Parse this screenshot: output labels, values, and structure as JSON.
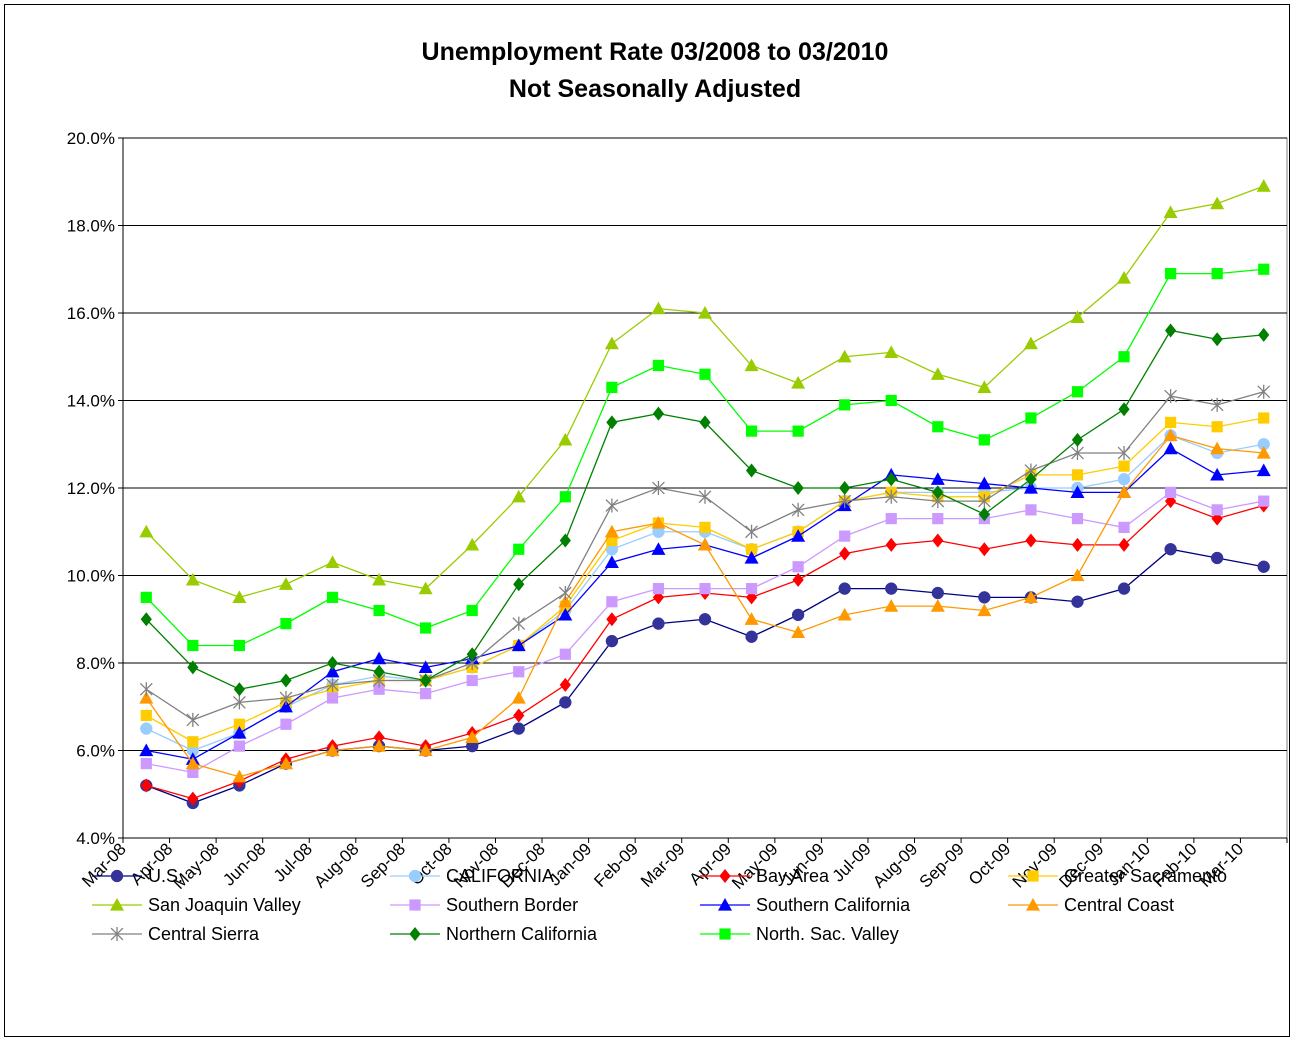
{
  "chart_data": {
    "type": "line",
    "title": [
      "Unemployment Rate 03/2008 to 03/2010",
      "Not Seasonally Adjusted"
    ],
    "xlabel": "",
    "ylabel": "",
    "ylim": [
      4.0,
      20.0
    ],
    "yticks": [
      "4.0%",
      "6.0%",
      "8.0%",
      "10.0%",
      "12.0%",
      "14.0%",
      "16.0%",
      "18.0%",
      "20.0%"
    ],
    "xticks": [
      "Mar-08",
      "Apr-08",
      "May-08",
      "Jun-08",
      "Jul-08",
      "Aug-08",
      "Sep-08",
      "Oct-08",
      "Nov-08",
      "Dec-08",
      "Jan-09",
      "Feb-09",
      "Mar-09",
      "Apr-09",
      "May-09",
      "Jun-09",
      "Jul-09",
      "Aug-09",
      "Sep-09",
      "Oct-09",
      "Nov-09",
      "Dec-09",
      "Jan-10",
      "Feb-10",
      "Mar-10"
    ],
    "grid": "horizontal",
    "legend": "bottom",
    "series": [
      {
        "name": "U.S.",
        "color": "#333399",
        "line": "#000080",
        "marker": "circle",
        "values": [
          5.2,
          4.8,
          5.2,
          5.7,
          6.0,
          6.1,
          6.0,
          6.1,
          6.5,
          7.1,
          8.5,
          8.9,
          9.0,
          8.6,
          9.1,
          9.7,
          9.7,
          9.6,
          9.5,
          9.5,
          9.4,
          9.7,
          10.6,
          10.4,
          10.2
        ]
      },
      {
        "name": "CALIFORNIA",
        "color": "#99CCFF",
        "line": "#99CCFF",
        "marker": "circle",
        "values": [
          6.5,
          6.0,
          6.4,
          7.0,
          7.5,
          7.7,
          7.6,
          7.9,
          8.4,
          9.2,
          10.6,
          11.0,
          11.0,
          10.6,
          11.0,
          11.7,
          11.9,
          11.9,
          11.9,
          12.0,
          12.0,
          12.2,
          13.2,
          12.8,
          13.0
        ]
      },
      {
        "name": "Bay Area",
        "color": "#FF0000",
        "line": "#FF0000",
        "marker": "diamond",
        "values": [
          5.2,
          4.9,
          5.3,
          5.8,
          6.1,
          6.3,
          6.1,
          6.4,
          6.8,
          7.5,
          9.0,
          9.5,
          9.6,
          9.5,
          9.9,
          10.5,
          10.7,
          10.8,
          10.6,
          10.8,
          10.7,
          10.7,
          11.7,
          11.3,
          11.6
        ]
      },
      {
        "name": "Greater Sacramento",
        "color": "#FFCC00",
        "line": "#FFCC00",
        "marker": "square",
        "values": [
          6.8,
          6.2,
          6.6,
          7.1,
          7.4,
          7.6,
          7.6,
          7.9,
          8.4,
          9.3,
          10.8,
          11.2,
          11.1,
          10.6,
          11.0,
          11.7,
          11.9,
          11.8,
          11.8,
          12.3,
          12.3,
          12.5,
          13.5,
          13.4,
          13.6
        ]
      },
      {
        "name": "San Joaquin Valley",
        "color": "#99CC00",
        "line": "#99CC00",
        "marker": "triangle",
        "values": [
          11.0,
          9.9,
          9.5,
          9.8,
          10.3,
          9.9,
          9.7,
          10.7,
          11.8,
          13.1,
          15.3,
          16.1,
          16.0,
          14.8,
          14.4,
          15.0,
          15.1,
          14.6,
          14.3,
          15.3,
          15.9,
          16.8,
          18.3,
          18.5,
          18.9
        ]
      },
      {
        "name": "Southern Border",
        "color": "#CC99FF",
        "line": "#CC99FF",
        "marker": "square",
        "values": [
          5.7,
          5.5,
          6.1,
          6.6,
          7.2,
          7.4,
          7.3,
          7.6,
          7.8,
          8.2,
          9.4,
          9.7,
          9.7,
          9.7,
          10.2,
          10.9,
          11.3,
          11.3,
          11.3,
          11.5,
          11.3,
          11.1,
          11.9,
          11.5,
          11.7
        ]
      },
      {
        "name": "Southern California",
        "color": "#0000FF",
        "line": "#0000FF",
        "marker": "triangle",
        "values": [
          6.0,
          5.8,
          6.4,
          7.0,
          7.8,
          8.1,
          7.9,
          8.1,
          8.4,
          9.1,
          10.3,
          10.6,
          10.7,
          10.4,
          10.9,
          11.6,
          12.3,
          12.2,
          12.1,
          12.0,
          11.9,
          11.9,
          12.9,
          12.3,
          12.4
        ]
      },
      {
        "name": "Central Coast",
        "color": "#FF9900",
        "line": "#FF9900",
        "marker": "triangle",
        "values": [
          7.2,
          5.7,
          5.4,
          5.7,
          6.0,
          6.1,
          6.0,
          6.3,
          7.2,
          9.4,
          11.0,
          11.2,
          10.7,
          9.0,
          8.7,
          9.1,
          9.3,
          9.3,
          9.2,
          9.5,
          10.0,
          11.9,
          13.2,
          12.9,
          12.8
        ]
      },
      {
        "name": "Central Sierra",
        "color": "#808080",
        "line": "#808080",
        "marker": "star",
        "values": [
          7.4,
          6.7,
          7.1,
          7.2,
          7.5,
          7.6,
          7.6,
          8.0,
          8.9,
          9.6,
          11.6,
          12.0,
          11.8,
          11.0,
          11.5,
          11.7,
          11.8,
          11.7,
          11.7,
          12.4,
          12.8,
          12.8,
          14.1,
          13.9,
          14.2
        ]
      },
      {
        "name": "Northern California",
        "color": "#008000",
        "line": "#008000",
        "marker": "diamond",
        "values": [
          9.0,
          7.9,
          7.4,
          7.6,
          8.0,
          7.8,
          7.6,
          8.2,
          9.8,
          10.8,
          13.5,
          13.7,
          13.5,
          12.4,
          12.0,
          12.0,
          12.2,
          11.9,
          11.4,
          12.2,
          13.1,
          13.8,
          15.6,
          15.4,
          15.5
        ]
      },
      {
        "name": "North. Sac. Valley",
        "color": "#00FF00",
        "line": "#00FF00",
        "marker": "square",
        "values": [
          9.5,
          8.4,
          8.4,
          8.9,
          9.5,
          9.2,
          8.8,
          9.2,
          10.6,
          11.8,
          14.3,
          14.8,
          14.6,
          13.3,
          13.3,
          13.9,
          14.0,
          13.4,
          13.1,
          13.6,
          14.2,
          15.0,
          16.9,
          16.9,
          17.0
        ]
      }
    ]
  }
}
